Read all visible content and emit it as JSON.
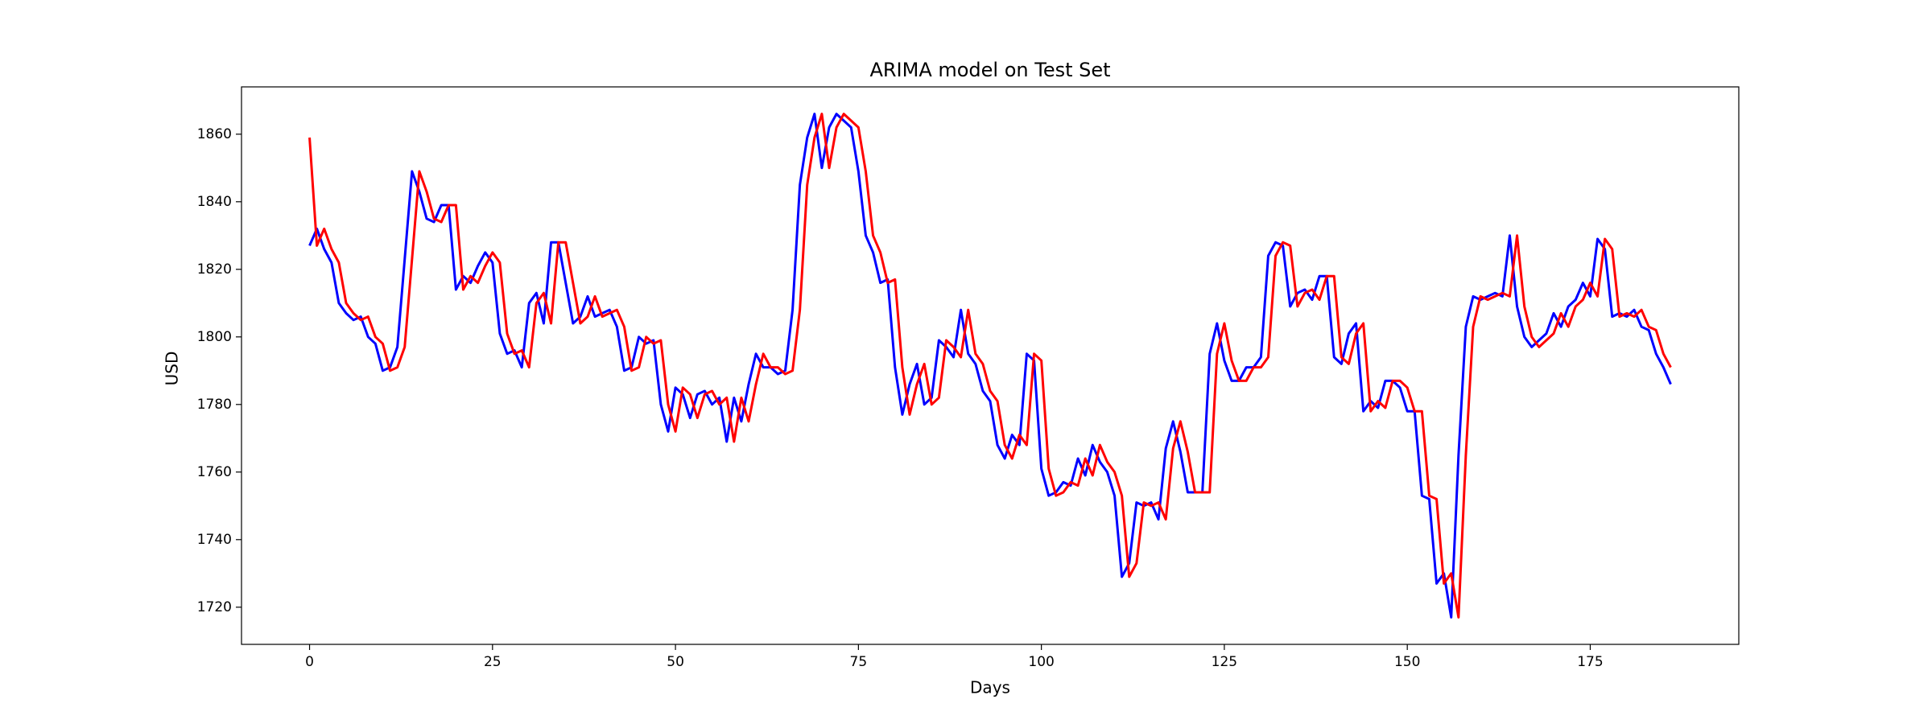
{
  "chart_data": {
    "type": "line",
    "title": "ARIMA model on Test Set",
    "x_label": "Days",
    "y_label": "USD",
    "x": [
      0,
      1,
      2,
      3,
      4,
      5,
      6,
      7,
      8,
      9,
      10,
      11,
      12,
      13,
      14,
      15,
      16,
      17,
      18,
      19,
      20,
      21,
      22,
      23,
      24,
      25,
      26,
      27,
      28,
      29,
      30,
      31,
      32,
      33,
      34,
      35,
      36,
      37,
      38,
      39,
      40,
      41,
      42,
      43,
      44,
      45,
      46,
      47,
      48,
      49,
      50,
      51,
      52,
      53,
      54,
      55,
      56,
      57,
      58,
      59,
      60,
      61,
      62,
      63,
      64,
      65,
      66,
      67,
      68,
      69,
      70,
      71,
      72,
      73,
      74,
      75,
      76,
      77,
      78,
      79,
      80,
      81,
      82,
      83,
      84,
      85,
      86,
      87,
      88,
      89,
      90,
      91,
      92,
      93,
      94,
      95,
      96,
      97,
      98,
      99,
      100,
      101,
      102,
      103,
      104,
      105,
      106,
      107,
      108,
      109,
      110,
      111,
      112,
      113,
      114,
      115,
      116,
      117,
      118,
      119,
      120,
      121,
      122,
      123,
      124,
      125,
      126,
      127,
      128,
      129,
      130,
      131,
      132,
      133,
      134,
      135,
      136,
      137,
      138,
      139,
      140,
      141,
      142,
      143,
      144,
      145,
      146,
      147,
      148,
      149,
      150,
      151,
      152,
      153,
      154,
      155,
      156,
      157,
      158,
      159,
      160,
      161,
      162,
      163,
      164,
      165,
      166,
      167,
      168,
      169,
      170,
      171,
      172,
      173,
      174,
      175,
      176,
      177,
      178,
      179,
      180,
      181,
      182,
      183,
      184,
      185,
      186
    ],
    "series": [
      {
        "color": "#0000ff",
        "values": [
          1827,
          1832,
          1826,
          1822,
          1810,
          1807,
          1805,
          1806,
          1800,
          1798,
          1790,
          1791,
          1797,
          1823,
          1849,
          1843,
          1835,
          1834,
          1839,
          1839,
          1814,
          1818,
          1816,
          1821,
          1825,
          1822,
          1801,
          1795,
          1796,
          1791,
          1810,
          1813,
          1804,
          1828,
          1828,
          1816,
          1804,
          1806,
          1812,
          1806,
          1807,
          1808,
          1803,
          1790,
          1791,
          1800,
          1798,
          1799,
          1780,
          1772,
          1785,
          1783,
          1776,
          1783,
          1784,
          1780,
          1782,
          1769,
          1782,
          1775,
          1786,
          1795,
          1791,
          1791,
          1789,
          1790,
          1808,
          1845,
          1859,
          1866,
          1850,
          1862,
          1866,
          1864,
          1862,
          1849,
          1830,
          1825,
          1816,
          1817,
          1791,
          1777,
          1786,
          1792,
          1780,
          1782,
          1799,
          1797,
          1794,
          1808,
          1795,
          1792,
          1784,
          1781,
          1768,
          1764,
          1771,
          1768,
          1795,
          1793,
          1761,
          1753,
          1754,
          1757,
          1756,
          1764,
          1759,
          1768,
          1763,
          1760,
          1753,
          1729,
          1733,
          1751,
          1750,
          1751,
          1746,
          1767,
          1775,
          1766,
          1754,
          1754,
          1754,
          1795,
          1804,
          1793,
          1787,
          1787,
          1791,
          1791,
          1794,
          1824,
          1828,
          1827,
          1809,
          1813,
          1814,
          1811,
          1818,
          1818,
          1794,
          1792,
          1801,
          1804,
          1778,
          1781,
          1779,
          1787,
          1787,
          1785,
          1778,
          1778,
          1753,
          1752,
          1727,
          1730,
          1717,
          1765,
          1803,
          1812,
          1811,
          1812,
          1813,
          1812,
          1830,
          1809,
          1800,
          1797,
          1799,
          1801,
          1807,
          1803,
          1809,
          1811,
          1816,
          1812,
          1829,
          1826,
          1806,
          1807,
          1806,
          1808,
          1803,
          1802,
          1795,
          1791,
          1786
        ]
      },
      {
        "color": "#ff0000",
        "values": [
          1859,
          1827,
          1832,
          1826,
          1822,
          1810,
          1807,
          1805,
          1806,
          1800,
          1798,
          1790,
          1791,
          1797,
          1823,
          1849,
          1843,
          1835,
          1834,
          1839,
          1839,
          1814,
          1818,
          1816,
          1821,
          1825,
          1822,
          1801,
          1795,
          1796,
          1791,
          1810,
          1813,
          1804,
          1828,
          1828,
          1816,
          1804,
          1806,
          1812,
          1806,
          1807,
          1808,
          1803,
          1790,
          1791,
          1800,
          1798,
          1799,
          1780,
          1772,
          1785,
          1783,
          1776,
          1783,
          1784,
          1780,
          1782,
          1769,
          1782,
          1775,
          1786,
          1795,
          1791,
          1791,
          1789,
          1790,
          1808,
          1845,
          1859,
          1866,
          1850,
          1862,
          1866,
          1864,
          1862,
          1849,
          1830,
          1825,
          1816,
          1817,
          1791,
          1777,
          1786,
          1792,
          1780,
          1782,
          1799,
          1797,
          1794,
          1808,
          1795,
          1792,
          1784,
          1781,
          1768,
          1764,
          1771,
          1768,
          1795,
          1793,
          1761,
          1753,
          1754,
          1757,
          1756,
          1764,
          1759,
          1768,
          1763,
          1760,
          1753,
          1729,
          1733,
          1751,
          1750,
          1751,
          1746,
          1767,
          1775,
          1766,
          1754,
          1754,
          1754,
          1795,
          1804,
          1793,
          1787,
          1787,
          1791,
          1791,
          1794,
          1824,
          1828,
          1827,
          1809,
          1813,
          1814,
          1811,
          1818,
          1818,
          1794,
          1792,
          1801,
          1804,
          1778,
          1781,
          1779,
          1787,
          1787,
          1785,
          1778,
          1778,
          1753,
          1752,
          1727,
          1730,
          1717,
          1765,
          1803,
          1812,
          1811,
          1812,
          1813,
          1812,
          1830,
          1809,
          1800,
          1797,
          1799,
          1801,
          1807,
          1803,
          1809,
          1811,
          1816,
          1812,
          1829,
          1826,
          1806,
          1807,
          1806,
          1808,
          1803,
          1802,
          1795,
          1791
        ]
      }
    ],
    "xlim": [
      -9.3,
      195.3
    ],
    "xticks": [
      0,
      25,
      50,
      75,
      100,
      125,
      150,
      175
    ],
    "ylim": [
      1709,
      1874
    ],
    "yticks": [
      1720,
      1740,
      1760,
      1780,
      1800,
      1820,
      1840,
      1860
    ]
  }
}
